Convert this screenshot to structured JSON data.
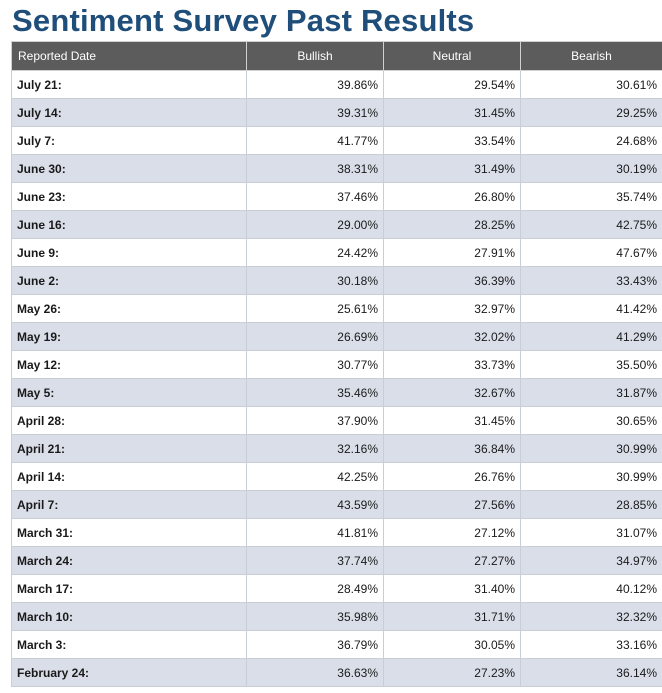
{
  "title": "Sentiment Survey Past Results",
  "table": {
    "headers": {
      "date": "Reported Date",
      "bullish": "Bullish",
      "neutral": "Neutral",
      "bearish": "Bearish"
    },
    "rows": [
      {
        "date": "July 21:",
        "bullish": "39.86%",
        "neutral": "29.54%",
        "bearish": "30.61%"
      },
      {
        "date": "July 14:",
        "bullish": "39.31%",
        "neutral": "31.45%",
        "bearish": "29.25%"
      },
      {
        "date": "July 7:",
        "bullish": "41.77%",
        "neutral": "33.54%",
        "bearish": "24.68%"
      },
      {
        "date": "June 30:",
        "bullish": "38.31%",
        "neutral": "31.49%",
        "bearish": "30.19%"
      },
      {
        "date": "June 23:",
        "bullish": "37.46%",
        "neutral": "26.80%",
        "bearish": "35.74%"
      },
      {
        "date": "June 16:",
        "bullish": "29.00%",
        "neutral": "28.25%",
        "bearish": "42.75%"
      },
      {
        "date": "June 9:",
        "bullish": "24.42%",
        "neutral": "27.91%",
        "bearish": "47.67%"
      },
      {
        "date": "June 2:",
        "bullish": "30.18%",
        "neutral": "36.39%",
        "bearish": "33.43%"
      },
      {
        "date": "May 26:",
        "bullish": "25.61%",
        "neutral": "32.97%",
        "bearish": "41.42%"
      },
      {
        "date": "May 19:",
        "bullish": "26.69%",
        "neutral": "32.02%",
        "bearish": "41.29%"
      },
      {
        "date": "May 12:",
        "bullish": "30.77%",
        "neutral": "33.73%",
        "bearish": "35.50%"
      },
      {
        "date": "May 5:",
        "bullish": "35.46%",
        "neutral": "32.67%",
        "bearish": "31.87%"
      },
      {
        "date": "April 28:",
        "bullish": "37.90%",
        "neutral": "31.45%",
        "bearish": "30.65%"
      },
      {
        "date": "April 21:",
        "bullish": "32.16%",
        "neutral": "36.84%",
        "bearish": "30.99%"
      },
      {
        "date": "April 14:",
        "bullish": "42.25%",
        "neutral": "26.76%",
        "bearish": "30.99%"
      },
      {
        "date": "April 7:",
        "bullish": "43.59%",
        "neutral": "27.56%",
        "bearish": "28.85%"
      },
      {
        "date": "March 31:",
        "bullish": "41.81%",
        "neutral": "27.12%",
        "bearish": "31.07%"
      },
      {
        "date": "March 24:",
        "bullish": "37.74%",
        "neutral": "27.27%",
        "bearish": "34.97%"
      },
      {
        "date": "March 17:",
        "bullish": "28.49%",
        "neutral": "31.40%",
        "bearish": "40.12%"
      },
      {
        "date": "March 10:",
        "bullish": "35.98%",
        "neutral": "31.71%",
        "bearish": "32.32%"
      },
      {
        "date": "March 3:",
        "bullish": "36.79%",
        "neutral": "30.05%",
        "bearish": "33.16%"
      },
      {
        "date": "February 24:",
        "bullish": "36.63%",
        "neutral": "27.23%",
        "bearish": "36.14%"
      }
    ]
  },
  "colors": {
    "title": "#1e4e79",
    "header_bg": "#5c5c5c",
    "row_alt_bg": "#d9dee9"
  }
}
